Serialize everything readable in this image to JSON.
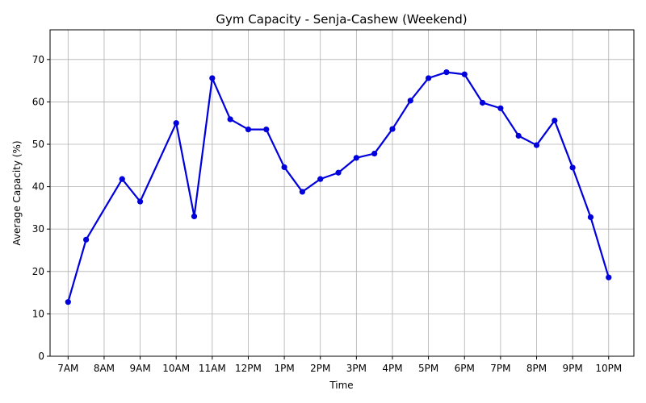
{
  "chart_data": {
    "type": "line",
    "title": "Gym Capacity - Senja-Cashew (Weekend)",
    "xlabel": "Time",
    "ylabel": "Average Capacity (%)",
    "x_ticks": [
      "7AM",
      "8AM",
      "9AM",
      "10AM",
      "11AM",
      "12PM",
      "1PM",
      "2PM",
      "3PM",
      "4PM",
      "5PM",
      "6PM",
      "7PM",
      "8PM",
      "9PM",
      "10PM"
    ],
    "y_ticks": [
      0,
      10,
      20,
      30,
      40,
      50,
      60,
      70
    ],
    "xlim_hours": [
      6.5,
      22.7
    ],
    "ylim": [
      0,
      77
    ],
    "grid": true,
    "line_color": "#0000dd",
    "series": [
      {
        "x": [
          "7:00",
          "7:30",
          "8:30",
          "9:00",
          "10:00",
          "10:30",
          "11:00",
          "11:30",
          "12:00",
          "12:30",
          "13:00",
          "13:30",
          "14:00",
          "14:30",
          "15:00",
          "15:30",
          "16:00",
          "16:30",
          "17:00",
          "17:30",
          "18:00",
          "18:30",
          "19:00",
          "19:30",
          "20:00",
          "20:30",
          "21:00",
          "21:30",
          "22:00"
        ],
        "values": [
          12.8,
          27.5,
          41.8,
          36.5,
          55.0,
          33.0,
          65.6,
          55.9,
          53.5,
          53.5,
          44.6,
          38.8,
          41.8,
          43.3,
          46.8,
          47.8,
          53.6,
          60.3,
          65.6,
          67.0,
          66.5,
          59.8,
          58.5,
          52.0,
          49.8,
          55.6,
          44.5,
          32.8,
          18.6
        ]
      }
    ]
  }
}
